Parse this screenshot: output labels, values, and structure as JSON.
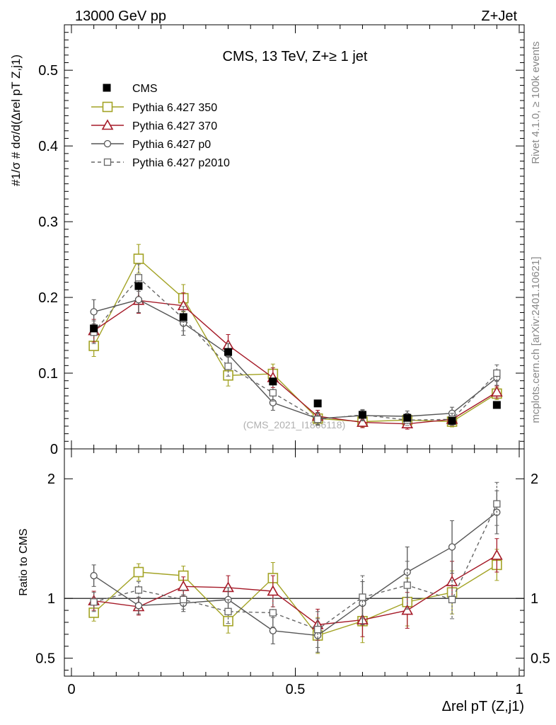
{
  "header": {
    "left": "13000 GeV pp",
    "right": "Z+Jet"
  },
  "side_labels": {
    "rivet": "Rivet 4.1.0, ≥ 100k events",
    "mcplots": "mcplots.cern.ch [arXiv:2401.10621]"
  },
  "chart_data": {
    "type": "line",
    "title": "CMS, 13 TeV, Z+≥ 1 jet",
    "watermark": "(CMS_2021_I1866118)",
    "xlabel": "Δrel pT (Z,j1)",
    "ylabel": "#1/σ # dσ/d(Δrel pT Z,j1)",
    "ratio_ylabel": "Ratio to CMS",
    "x": [
      0.05,
      0.15,
      0.25,
      0.35,
      0.45,
      0.55,
      0.65,
      0.75,
      0.85,
      0.95
    ],
    "xlim": [
      0,
      1
    ],
    "ylim": [
      0,
      0.56
    ],
    "ratio_ylim": [
      0.35,
      2.25
    ],
    "x_ticks": [
      "0",
      "0.5",
      "1"
    ],
    "y_ticks": [
      "0",
      "0.1",
      "0.2",
      "0.3",
      "0.4",
      "0.5"
    ],
    "ratio_ticks": [
      "0.5",
      "1",
      "2"
    ],
    "legend": [
      "CMS",
      "Pythia 6.427 350",
      "Pythia 6.427 370",
      "Pythia 6.427 p0",
      "Pythia 6.427 p2010"
    ],
    "data": {
      "name": "CMS",
      "values": [
        0.159,
        0.215,
        0.174,
        0.128,
        0.089,
        0.06,
        0.045,
        0.041,
        0.037,
        0.058
      ],
      "color": "#000000"
    },
    "series": [
      {
        "name": "Pythia 6.427 350",
        "values": [
          0.136,
          0.251,
          0.199,
          0.097,
          0.099,
          0.04,
          0.036,
          0.038,
          0.036,
          0.073
        ],
        "errors": [
          0.014,
          0.019,
          0.018,
          0.014,
          0.013,
          0.008,
          0.007,
          0.008,
          0.007,
          0.008
        ],
        "ratio": [
          0.88,
          1.22,
          1.19,
          0.81,
          1.17,
          0.69,
          0.81,
          0.97,
          1.05,
          1.28
        ],
        "ratio_errors": [
          0.07,
          0.07,
          0.08,
          0.1,
          0.13,
          0.15,
          0.18,
          0.2,
          0.18,
          0.13
        ],
        "color": "#a3a325",
        "marker": "square-open",
        "dashed": false
      },
      {
        "name": "Pythia 6.427 370",
        "values": [
          0.156,
          0.196,
          0.189,
          0.137,
          0.094,
          0.043,
          0.035,
          0.033,
          0.039,
          0.075
        ],
        "errors": [
          0.015,
          0.017,
          0.017,
          0.014,
          0.013,
          0.008,
          0.007,
          0.007,
          0.008,
          0.008
        ],
        "ratio": [
          0.98,
          0.93,
          1.1,
          1.09,
          1.06,
          0.78,
          0.82,
          0.9,
          1.14,
          1.36
        ],
        "ratio_errors": [
          0.08,
          0.07,
          0.08,
          0.1,
          0.13,
          0.13,
          0.14,
          0.15,
          0.17,
          0.14
        ],
        "color": "#a51a28",
        "marker": "triangle-open",
        "dashed": false
      },
      {
        "name": "Pythia 6.427 p0",
        "values": [
          0.181,
          0.197,
          0.166,
          0.125,
          0.061,
          0.04,
          0.044,
          0.043,
          0.047,
          0.094
        ],
        "errors": [
          0.016,
          0.017,
          0.016,
          0.014,
          0.01,
          0.008,
          0.007,
          0.007,
          0.008,
          0.01
        ],
        "ratio": [
          1.19,
          0.94,
          0.96,
          0.99,
          0.73,
          0.69,
          0.96,
          1.22,
          1.43,
          1.72
        ],
        "ratio_errors": [
          0.09,
          0.07,
          0.07,
          0.1,
          0.11,
          0.14,
          0.18,
          0.21,
          0.22,
          0.18
        ],
        "color": "#555555",
        "marker": "circle-open",
        "dashed": false
      },
      {
        "name": "Pythia 6.427 p2010",
        "values": [
          0.154,
          0.226,
          0.172,
          0.109,
          0.074,
          0.039,
          0.045,
          0.038,
          0.039,
          0.1
        ],
        "errors": [
          0.015,
          0.018,
          0.016,
          0.013,
          0.011,
          0.008,
          0.007,
          0.007,
          0.008,
          0.011
        ],
        "ratio": [
          0.97,
          1.07,
          0.99,
          0.89,
          0.88,
          0.74,
          1.01,
          1.11,
          0.99,
          1.79
        ],
        "ratio_errors": [
          0.08,
          0.07,
          0.08,
          0.1,
          0.12,
          0.15,
          0.18,
          0.2,
          0.16,
          0.18
        ],
        "color": "#666666",
        "marker": "square-open-small",
        "dashed": true
      }
    ]
  }
}
